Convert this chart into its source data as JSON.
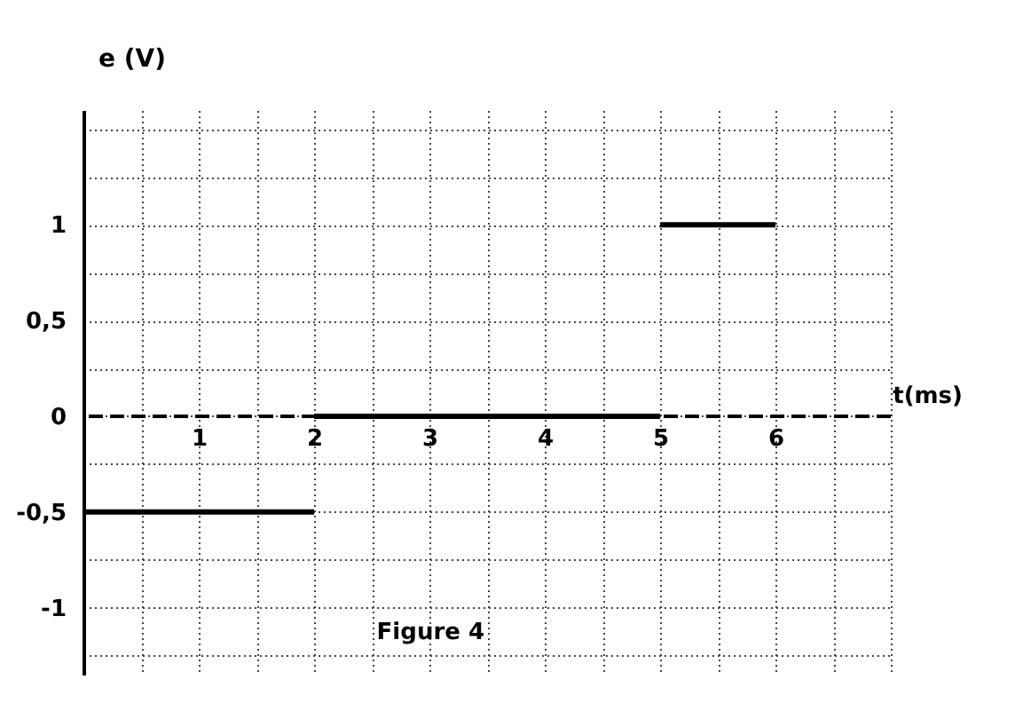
{
  "chart_data": {
    "type": "line",
    "xlabel": "t(ms)",
    "ylabel": "e (V)",
    "annotations": [
      "Figure 4"
    ],
    "xlim": [
      0,
      7
    ],
    "ylim": [
      -1.35,
      1.6
    ],
    "xticks": [
      {
        "value": 0,
        "label": null
      },
      {
        "value": 0.5,
        "label": null
      },
      {
        "value": 1,
        "label": "1"
      },
      {
        "value": 1.5,
        "label": null
      },
      {
        "value": 2,
        "label": "2"
      },
      {
        "value": 2.5,
        "label": null
      },
      {
        "value": 3,
        "label": "3"
      },
      {
        "value": 3.5,
        "label": null
      },
      {
        "value": 4,
        "label": "4"
      },
      {
        "value": 4.5,
        "label": null
      },
      {
        "value": 5,
        "label": "5"
      },
      {
        "value": 5.5,
        "label": null
      },
      {
        "value": 6,
        "label": "6"
      },
      {
        "value": 6.5,
        "label": null
      },
      {
        "value": 7,
        "label": null
      }
    ],
    "yticks": [
      {
        "value": -1.25,
        "label": null
      },
      {
        "value": -1,
        "label": "-1"
      },
      {
        "value": -0.75,
        "label": null
      },
      {
        "value": -0.5,
        "label": "-0,5"
      },
      {
        "value": -0.25,
        "label": null
      },
      {
        "value": 0,
        "label": "0"
      },
      {
        "value": 0.25,
        "label": null
      },
      {
        "value": 0.5,
        "label": "0,5"
      },
      {
        "value": 0.75,
        "label": null
      },
      {
        "value": 1,
        "label": "1"
      },
      {
        "value": 1.25,
        "label": null
      },
      {
        "value": 1.5,
        "label": null
      }
    ],
    "grid": true,
    "line_style": "solid",
    "marker": "none",
    "ref_lines": [
      {
        "axis": "y",
        "value": 0,
        "color": "#000000",
        "line_style": "dashed"
      }
    ],
    "series": [
      {
        "color": "#000000",
        "x": [
          0,
          2
        ],
        "values": [
          -0.5,
          -0.5
        ]
      },
      {
        "color": "#000000",
        "x": [
          2,
          5
        ],
        "values": [
          0,
          0
        ]
      },
      {
        "color": "#000000",
        "x": [
          5,
          6
        ],
        "values": [
          1,
          1
        ]
      }
    ]
  }
}
